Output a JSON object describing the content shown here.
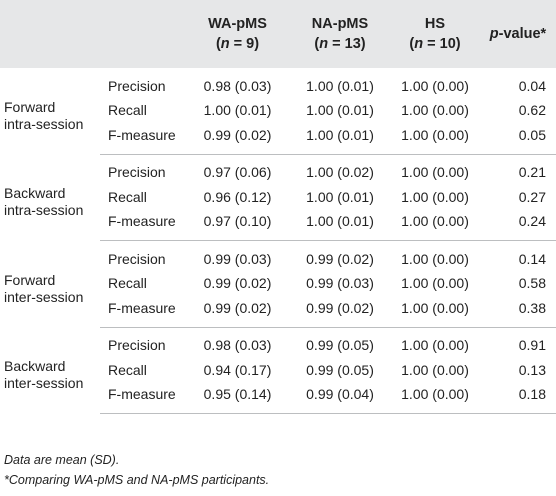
{
  "header": {
    "wa_line1": "WA-pMS",
    "wa_n_label": "n",
    "wa_n_value": " = 9)",
    "na_line1": "NA-pMS",
    "na_n_label": "n",
    "na_n_value": " = 13)",
    "hs_line1": "HS",
    "hs_n_label": "n",
    "hs_n_value": " = 10)",
    "p_italic": "p",
    "p_rest": "-value*"
  },
  "groups": [
    {
      "label_line1": "Forward",
      "label_line2": "intra-session",
      "rows": [
        {
          "metric": "Precision",
          "wa": "0.98 (0.03)",
          "na": "1.00 (0.01)",
          "hs": "1.00 (0.00)",
          "p": "0.04"
        },
        {
          "metric": "Recall",
          "wa": "1.00 (0.01)",
          "na": "1.00 (0.01)",
          "hs": "1.00 (0.00)",
          "p": "0.62"
        },
        {
          "metric": "F-measure",
          "wa": "0.99 (0.02)",
          "na": "1.00 (0.01)",
          "hs": "1.00 (0.00)",
          "p": "0.05"
        }
      ]
    },
    {
      "label_line1": "Backward",
      "label_line2": "intra-session",
      "rows": [
        {
          "metric": "Precision",
          "wa": "0.97 (0.06)",
          "na": "1.00 (0.02)",
          "hs": "1.00 (0.00)",
          "p": "0.21"
        },
        {
          "metric": "Recall",
          "wa": "0.96 (0.12)",
          "na": "1.00 (0.01)",
          "hs": "1.00 (0.00)",
          "p": "0.27"
        },
        {
          "metric": "F-measure",
          "wa": "0.97 (0.10)",
          "na": "1.00 (0.01)",
          "hs": "1.00 (0.00)",
          "p": "0.24"
        }
      ]
    },
    {
      "label_line1": "Forward",
      "label_line2": "inter-session",
      "rows": [
        {
          "metric": "Precision",
          "wa": "0.99 (0.03)",
          "na": "0.99 (0.02)",
          "hs": "1.00 (0.00)",
          "p": "0.14"
        },
        {
          "metric": "Recall",
          "wa": "0.99 (0.02)",
          "na": "0.99 (0.03)",
          "hs": "1.00 (0.00)",
          "p": "0.58"
        },
        {
          "metric": "F-measure",
          "wa": "0.99 (0.02)",
          "na": "0.99 (0.02)",
          "hs": "1.00 (0.00)",
          "p": "0.38"
        }
      ]
    },
    {
      "label_line1": "Backward",
      "label_line2": "inter-session",
      "rows": [
        {
          "metric": "Precision",
          "wa": "0.98 (0.03)",
          "na": "0.99 (0.05)",
          "hs": "1.00 (0.00)",
          "p": "0.91"
        },
        {
          "metric": "Recall",
          "wa": "0.94 (0.17)",
          "na": "0.99 (0.05)",
          "hs": "1.00 (0.00)",
          "p": "0.13"
        },
        {
          "metric": "F-measure",
          "wa": "0.95 (0.14)",
          "na": "0.99 (0.04)",
          "hs": "1.00 (0.00)",
          "p": "0.18"
        }
      ]
    }
  ],
  "notes": {
    "line1": "Data are mean (SD).",
    "line2": "*Comparing WA-pMS and NA-pMS participants."
  }
}
